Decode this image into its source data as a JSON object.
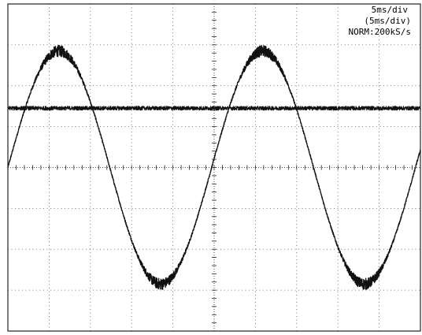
{
  "settings": {
    "timebase": "5ms/div",
    "timebase_secondary": "(5ms/div)",
    "acquisition": "NORM:200kS/s"
  },
  "colors": {
    "trace": "#111111",
    "grid": "#555555",
    "frame": "#222222",
    "background": "#ffffff"
  },
  "chart_data": {
    "type": "line",
    "title": "",
    "xlabel": "",
    "ylabel": "",
    "xlim": [
      0,
      50
    ],
    "ylim": [
      -4,
      4
    ],
    "x_unit": "ms",
    "y_unit": "div",
    "grid": true,
    "divisions": {
      "x": 10,
      "y": 8
    },
    "series": [
      {
        "kind": "sine",
        "amplitude_div": 2.85,
        "offset_div": 0,
        "period_ms": 24.7,
        "zero_crossing_rising_ms": 0,
        "noise_band_div": 0.08,
        "values_at_div": [
          {
            "x": 0,
            "y": 0.0
          },
          {
            "x": 6.2,
            "y": 2.85
          },
          {
            "x": 12.4,
            "y": 0.0
          },
          {
            "x": 18.5,
            "y": -2.85
          },
          {
            "x": 24.7,
            "y": 0.0
          },
          {
            "x": 30.9,
            "y": 2.85
          },
          {
            "x": 37.0,
            "y": 0.0
          },
          {
            "x": 43.2,
            "y": -2.85
          },
          {
            "x": 49.4,
            "y": 0.0
          }
        ]
      },
      {
        "kind": "flat",
        "level_div": 1.45,
        "noise_band_div": 0.05
      }
    ]
  }
}
